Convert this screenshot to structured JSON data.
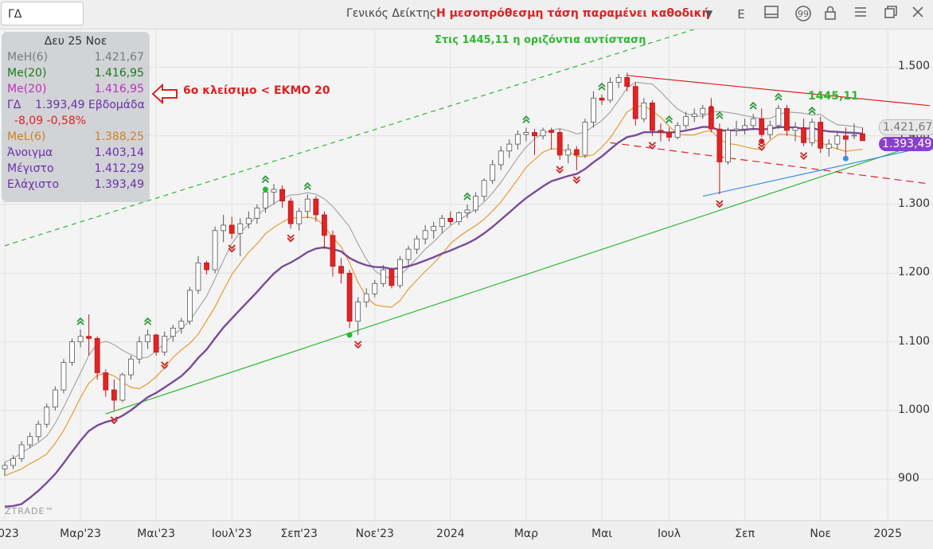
{
  "toolbar": {
    "symbol": "ΓΔ",
    "index_name": "Γενικός Δείκτης",
    "headline": "Η μεσοπρόθεσμη τάση παραμένει καθοδική",
    "period": "E",
    "icons": [
      "chevron-down-icon",
      "panel-icon",
      "quote-icon",
      "lock-icon",
      "menu-icon",
      "restore-icon",
      "close-icon"
    ]
  },
  "legend": {
    "date": "Δευ 25 Νοε",
    "rows": [
      {
        "label": "MeH(6)",
        "value": "1.421,67",
        "color": "#7a7a7a"
      },
      {
        "label": "Me(20)",
        "value": "1.416,95",
        "color": "#1a7a1a"
      },
      {
        "label": "Me(20)",
        "value": "1.416,95",
        "color": "#c030c0"
      },
      {
        "label": "ΓΔ    1.393,49 Εβδομάδα",
        "value": "",
        "color": "#6a2fa8"
      },
      {
        "label": "  -8,09 -0,58%",
        "value": "",
        "color": "#e02020"
      },
      {
        "label": "MeL(6)",
        "value": "1.388,25",
        "color": "#d08020"
      },
      {
        "label": "Άνοιγμα",
        "value": "1.403,14",
        "color": "#6a2fa8"
      },
      {
        "label": "Μέγιστο",
        "value": "1.412,29",
        "color": "#6a2fa8"
      },
      {
        "label": "Ελάχιστο",
        "value": "1.393,49",
        "color": "#6a2fa8"
      }
    ]
  },
  "annotations": {
    "resistance": "Στις 1445,11 η οριζόντια αντίσταση",
    "close_note": "6ο κλείσιμο < ΕΚΜΟ 20",
    "level": "1445,11"
  },
  "price_tags": {
    "upper": "1.421,67",
    "last": "1.393,49"
  },
  "watermark": "ZTRADE™",
  "colors": {
    "up": "#ffffff",
    "down": "#e02424",
    "ema20": "#7a4a9a",
    "mel6": "#e89a30",
    "meh6": "#a0a0a0",
    "channel": "#2eb82e",
    "resistance": "#e02020",
    "support": "#3a8ee6"
  },
  "chart_data": {
    "type": "candlestick",
    "title": "Η μεσοπρόθεσμη τάση παραμένει καθοδική",
    "timeframe": "weekly",
    "y_ticks": [
      "1.500",
      "1.400",
      "1.300",
      "1.200",
      "1.100",
      "1.000",
      "900"
    ],
    "y_tick_values": [
      1500,
      1400,
      1300,
      1200,
      1100,
      1000,
      900
    ],
    "ylim": [
      840,
      1555
    ],
    "x_ticks": [
      "2023",
      "Μαρ'23",
      "Μαι'23",
      "Ιουλ'23",
      "Σεπ'23",
      "Νοε'23",
      "2024",
      "Μαρ",
      "Μαι",
      "Ιουλ",
      "Σεπ",
      "Νοε",
      "2025"
    ],
    "x_tick_weeks": [
      0,
      9,
      18,
      27,
      35,
      44,
      53,
      62,
      71,
      79,
      88,
      97,
      105
    ],
    "weeks_visible": 110,
    "candles": [
      {
        "w": 0,
        "o": 915,
        "h": 925,
        "l": 905,
        "c": 920
      },
      {
        "w": 1,
        "o": 920,
        "h": 935,
        "l": 915,
        "c": 930
      },
      {
        "w": 2,
        "o": 930,
        "h": 955,
        "l": 925,
        "c": 950
      },
      {
        "w": 3,
        "o": 950,
        "h": 968,
        "l": 945,
        "c": 962
      },
      {
        "w": 4,
        "o": 962,
        "h": 985,
        "l": 955,
        "c": 980
      },
      {
        "w": 5,
        "o": 980,
        "h": 1010,
        "l": 975,
        "c": 1005
      },
      {
        "w": 6,
        "o": 1005,
        "h": 1035,
        "l": 1000,
        "c": 1030
      },
      {
        "w": 7,
        "o": 1030,
        "h": 1075,
        "l": 1025,
        "c": 1070
      },
      {
        "w": 8,
        "o": 1070,
        "h": 1105,
        "l": 1065,
        "c": 1100
      },
      {
        "w": 9,
        "o": 1100,
        "h": 1118,
        "l": 1092,
        "c": 1108
      },
      {
        "w": 10,
        "o": 1108,
        "h": 1140,
        "l": 1080,
        "c": 1105
      },
      {
        "w": 11,
        "o": 1105,
        "h": 1108,
        "l": 1045,
        "c": 1055
      },
      {
        "w": 12,
        "o": 1055,
        "h": 1060,
        "l": 1020,
        "c": 1030
      },
      {
        "w": 13,
        "o": 1030,
        "h": 1045,
        "l": 1000,
        "c": 1015
      },
      {
        "w": 14,
        "o": 1015,
        "h": 1055,
        "l": 1012,
        "c": 1052
      },
      {
        "w": 15,
        "o": 1052,
        "h": 1080,
        "l": 1045,
        "c": 1075
      },
      {
        "w": 16,
        "o": 1075,
        "h": 1108,
        "l": 1068,
        "c": 1100
      },
      {
        "w": 17,
        "o": 1100,
        "h": 1118,
        "l": 1090,
        "c": 1110
      },
      {
        "w": 18,
        "o": 1110,
        "h": 1112,
        "l": 1080,
        "c": 1085
      },
      {
        "w": 19,
        "o": 1085,
        "h": 1115,
        "l": 1080,
        "c": 1108
      },
      {
        "w": 20,
        "o": 1108,
        "h": 1125,
        "l": 1100,
        "c": 1120
      },
      {
        "w": 21,
        "o": 1120,
        "h": 1135,
        "l": 1112,
        "c": 1130
      },
      {
        "w": 22,
        "o": 1130,
        "h": 1180,
        "l": 1125,
        "c": 1175
      },
      {
        "w": 23,
        "o": 1175,
        "h": 1225,
        "l": 1170,
        "c": 1215
      },
      {
        "w": 24,
        "o": 1215,
        "h": 1218,
        "l": 1198,
        "c": 1205
      },
      {
        "w": 25,
        "o": 1205,
        "h": 1268,
        "l": 1200,
        "c": 1262
      },
      {
        "w": 26,
        "o": 1262,
        "h": 1285,
        "l": 1245,
        "c": 1270
      },
      {
        "w": 27,
        "o": 1270,
        "h": 1282,
        "l": 1250,
        "c": 1258
      },
      {
        "w": 28,
        "o": 1258,
        "h": 1280,
        "l": 1225,
        "c": 1272
      },
      {
        "w": 29,
        "o": 1272,
        "h": 1290,
        "l": 1265,
        "c": 1280
      },
      {
        "w": 30,
        "o": 1280,
        "h": 1300,
        "l": 1272,
        "c": 1295
      },
      {
        "w": 31,
        "o": 1295,
        "h": 1325,
        "l": 1288,
        "c": 1318
      },
      {
        "w": 32,
        "o": 1318,
        "h": 1330,
        "l": 1300,
        "c": 1322
      },
      {
        "w": 33,
        "o": 1322,
        "h": 1328,
        "l": 1295,
        "c": 1305
      },
      {
        "w": 34,
        "o": 1305,
        "h": 1310,
        "l": 1265,
        "c": 1272
      },
      {
        "w": 35,
        "o": 1272,
        "h": 1295,
        "l": 1262,
        "c": 1290
      },
      {
        "w": 36,
        "o": 1290,
        "h": 1315,
        "l": 1280,
        "c": 1308
      },
      {
        "w": 37,
        "o": 1308,
        "h": 1312,
        "l": 1275,
        "c": 1285
      },
      {
        "w": 38,
        "o": 1285,
        "h": 1290,
        "l": 1235,
        "c": 1255
      },
      {
        "w": 39,
        "o": 1255,
        "h": 1262,
        "l": 1195,
        "c": 1210
      },
      {
        "w": 40,
        "o": 1210,
        "h": 1222,
        "l": 1185,
        "c": 1200
      },
      {
        "w": 41,
        "o": 1200,
        "h": 1205,
        "l": 1120,
        "c": 1130
      },
      {
        "w": 42,
        "o": 1130,
        "h": 1165,
        "l": 1110,
        "c": 1158
      },
      {
        "w": 43,
        "o": 1158,
        "h": 1178,
        "l": 1150,
        "c": 1170
      },
      {
        "w": 44,
        "o": 1170,
        "h": 1190,
        "l": 1165,
        "c": 1185
      },
      {
        "w": 45,
        "o": 1185,
        "h": 1212,
        "l": 1180,
        "c": 1205
      },
      {
        "w": 46,
        "o": 1205,
        "h": 1208,
        "l": 1178,
        "c": 1182
      },
      {
        "w": 47,
        "o": 1182,
        "h": 1225,
        "l": 1178,
        "c": 1220
      },
      {
        "w": 48,
        "o": 1220,
        "h": 1240,
        "l": 1210,
        "c": 1235
      },
      {
        "w": 49,
        "o": 1235,
        "h": 1255,
        "l": 1228,
        "c": 1250
      },
      {
        "w": 50,
        "o": 1250,
        "h": 1270,
        "l": 1242,
        "c": 1262
      },
      {
        "w": 51,
        "o": 1262,
        "h": 1275,
        "l": 1250,
        "c": 1268
      },
      {
        "w": 52,
        "o": 1268,
        "h": 1285,
        "l": 1258,
        "c": 1280
      },
      {
        "w": 53,
        "o": 1280,
        "h": 1290,
        "l": 1270,
        "c": 1275
      },
      {
        "w": 54,
        "o": 1275,
        "h": 1290,
        "l": 1270,
        "c": 1288
      },
      {
        "w": 55,
        "o": 1288,
        "h": 1300,
        "l": 1280,
        "c": 1292
      },
      {
        "w": 56,
        "o": 1292,
        "h": 1318,
        "l": 1288,
        "c": 1312
      },
      {
        "w": 57,
        "o": 1312,
        "h": 1338,
        "l": 1305,
        "c": 1335
      },
      {
        "w": 58,
        "o": 1335,
        "h": 1365,
        "l": 1330,
        "c": 1358
      },
      {
        "w": 59,
        "o": 1358,
        "h": 1385,
        "l": 1350,
        "c": 1378
      },
      {
        "w": 60,
        "o": 1378,
        "h": 1395,
        "l": 1368,
        "c": 1388
      },
      {
        "w": 61,
        "o": 1388,
        "h": 1408,
        "l": 1380,
        "c": 1402
      },
      {
        "w": 62,
        "o": 1402,
        "h": 1412,
        "l": 1392,
        "c": 1405
      },
      {
        "w": 63,
        "o": 1405,
        "h": 1410,
        "l": 1372,
        "c": 1400
      },
      {
        "w": 64,
        "o": 1400,
        "h": 1412,
        "l": 1395,
        "c": 1408
      },
      {
        "w": 65,
        "o": 1408,
        "h": 1412,
        "l": 1380,
        "c": 1405
      },
      {
        "w": 66,
        "o": 1405,
        "h": 1410,
        "l": 1365,
        "c": 1372
      },
      {
        "w": 67,
        "o": 1372,
        "h": 1388,
        "l": 1360,
        "c": 1380
      },
      {
        "w": 68,
        "o": 1380,
        "h": 1385,
        "l": 1350,
        "c": 1372
      },
      {
        "w": 69,
        "o": 1372,
        "h": 1425,
        "l": 1368,
        "c": 1420
      },
      {
        "w": 70,
        "o": 1420,
        "h": 1465,
        "l": 1412,
        "c": 1455
      },
      {
        "w": 71,
        "o": 1455,
        "h": 1460,
        "l": 1445,
        "c": 1452
      },
      {
        "w": 72,
        "o": 1452,
        "h": 1485,
        "l": 1448,
        "c": 1478
      },
      {
        "w": 73,
        "o": 1478,
        "h": 1490,
        "l": 1470,
        "c": 1485
      },
      {
        "w": 74,
        "o": 1485,
        "h": 1492,
        "l": 1465,
        "c": 1472
      },
      {
        "w": 75,
        "o": 1472,
        "h": 1478,
        "l": 1415,
        "c": 1425
      },
      {
        "w": 76,
        "o": 1425,
        "h": 1455,
        "l": 1420,
        "c": 1448
      },
      {
        "w": 77,
        "o": 1448,
        "h": 1452,
        "l": 1400,
        "c": 1408
      },
      {
        "w": 78,
        "o": 1408,
        "h": 1418,
        "l": 1392,
        "c": 1405
      },
      {
        "w": 79,
        "o": 1405,
        "h": 1412,
        "l": 1392,
        "c": 1398
      },
      {
        "w": 80,
        "o": 1398,
        "h": 1420,
        "l": 1395,
        "c": 1415
      },
      {
        "w": 81,
        "o": 1415,
        "h": 1435,
        "l": 1410,
        "c": 1428
      },
      {
        "w": 82,
        "o": 1428,
        "h": 1440,
        "l": 1420,
        "c": 1432
      },
      {
        "w": 83,
        "o": 1432,
        "h": 1445,
        "l": 1425,
        "c": 1440
      },
      {
        "w": 84,
        "o": 1440,
        "h": 1455,
        "l": 1405,
        "c": 1410
      },
      {
        "w": 85,
        "o": 1410,
        "h": 1418,
        "l": 1315,
        "c": 1362
      },
      {
        "w": 86,
        "o": 1362,
        "h": 1412,
        "l": 1358,
        "c": 1408
      },
      {
        "w": 87,
        "o": 1408,
        "h": 1422,
        "l": 1400,
        "c": 1410
      },
      {
        "w": 88,
        "o": 1410,
        "h": 1425,
        "l": 1402,
        "c": 1415
      },
      {
        "w": 89,
        "o": 1415,
        "h": 1432,
        "l": 1408,
        "c": 1425
      },
      {
        "w": 90,
        "o": 1425,
        "h": 1440,
        "l": 1398,
        "c": 1402
      },
      {
        "w": 91,
        "o": 1402,
        "h": 1422,
        "l": 1395,
        "c": 1415
      },
      {
        "w": 92,
        "o": 1415,
        "h": 1445,
        "l": 1410,
        "c": 1440
      },
      {
        "w": 93,
        "o": 1440,
        "h": 1445,
        "l": 1400,
        "c": 1408
      },
      {
        "w": 94,
        "o": 1408,
        "h": 1420,
        "l": 1392,
        "c": 1412
      },
      {
        "w": 95,
        "o": 1412,
        "h": 1425,
        "l": 1385,
        "c": 1390
      },
      {
        "w": 96,
        "o": 1390,
        "h": 1425,
        "l": 1385,
        "c": 1420
      },
      {
        "w": 97,
        "o": 1420,
        "h": 1428,
        "l": 1375,
        "c": 1382
      },
      {
        "w": 98,
        "o": 1382,
        "h": 1395,
        "l": 1370,
        "c": 1388
      },
      {
        "w": 99,
        "o": 1388,
        "h": 1405,
        "l": 1380,
        "c": 1400
      },
      {
        "w": 100,
        "o": 1400,
        "h": 1412,
        "l": 1370,
        "c": 1395
      },
      {
        "w": 101,
        "o": 1401,
        "h": 1418,
        "l": 1395,
        "c": 1401
      },
      {
        "w": 102,
        "o": 1403,
        "h": 1412,
        "l": 1393,
        "c": 1393
      }
    ]
  }
}
